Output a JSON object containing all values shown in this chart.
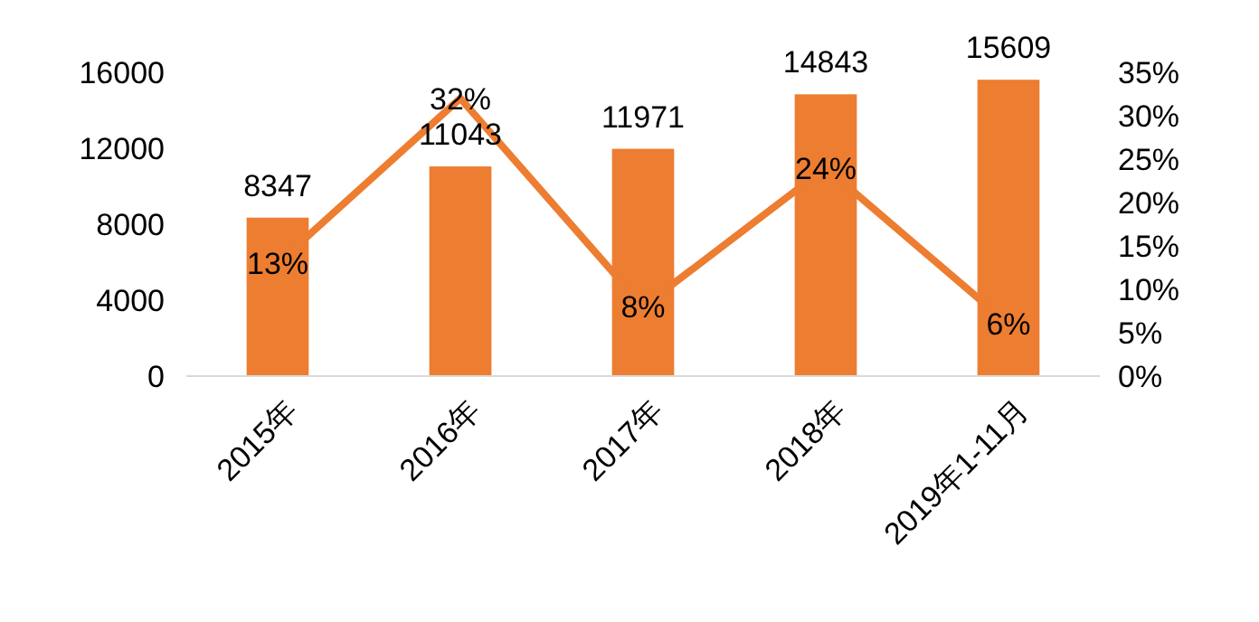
{
  "chart_data": {
    "type": "bar",
    "categories": [
      "2015年",
      "2016年",
      "2017年",
      "2018年",
      "2019年1-11月"
    ],
    "series": [
      {
        "color": "#ed7d31",
        "values": [
          8347,
          11043,
          11971,
          14843,
          15609
        ]
      },
      {
        "type": "line",
        "axis": "y2",
        "color": "#ed7d31",
        "values": [
          13,
          32,
          8,
          24,
          6
        ],
        "value_labels": [
          "13%",
          "32%",
          "8%",
          "24%",
          "6%"
        ]
      }
    ],
    "ylim": [
      0,
      16000
    ],
    "yticks": [
      0,
      4000,
      8000,
      12000,
      16000
    ],
    "y2lim": [
      0,
      35
    ],
    "y2ticks": [
      {
        "value": 0,
        "label": "0%"
      },
      {
        "value": 5,
        "label": "5%"
      },
      {
        "value": 10,
        "label": "10%"
      },
      {
        "value": 15,
        "label": "15%"
      },
      {
        "value": 20,
        "label": "20%"
      },
      {
        "value": 25,
        "label": "25%"
      },
      {
        "value": 30,
        "label": "30%"
      },
      {
        "value": 35,
        "label": "35%"
      }
    ],
    "data_labels": true,
    "grid": false,
    "marker": "none",
    "line_style": "solid"
  }
}
